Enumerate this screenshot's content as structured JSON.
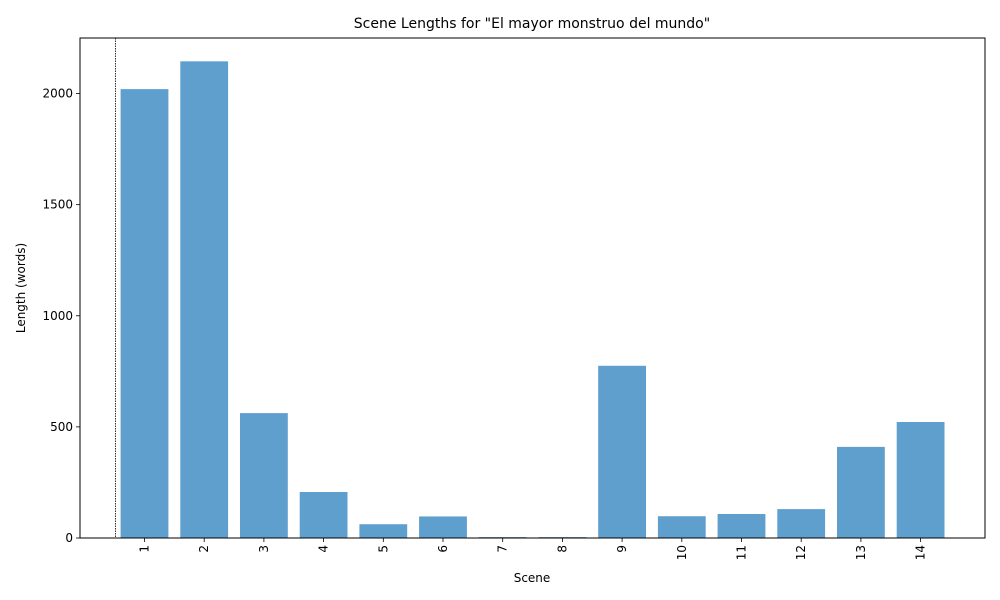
{
  "chart_data": {
    "type": "bar",
    "title": "Scene Lengths for \"El mayor monstruo del mundo\"",
    "xlabel": "Scene",
    "ylabel": "Length (words)",
    "categories": [
      "1",
      "2",
      "3",
      "4",
      "5",
      "6",
      "7",
      "8",
      "9",
      "10",
      "11",
      "12",
      "13",
      "14"
    ],
    "values": [
      2020,
      2145,
      562,
      207,
      62,
      97,
      4,
      4,
      775,
      98,
      108,
      130,
      410,
      522
    ],
    "ylim": [
      0,
      2250
    ],
    "yticks": [
      0,
      500,
      1000,
      1500,
      2000
    ],
    "bar_color": "#5f9fcd",
    "grid": false,
    "x_tick_rotation": "vertical"
  }
}
